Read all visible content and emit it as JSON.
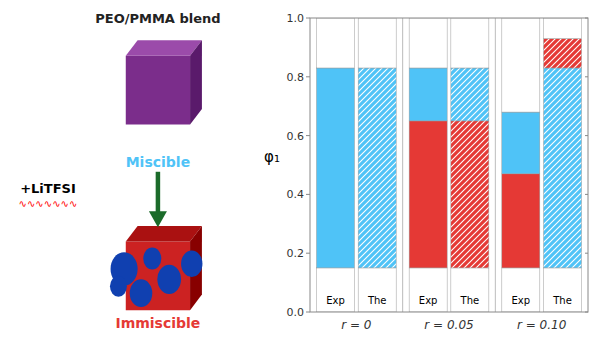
{
  "chart_data": {
    "type": "bar",
    "stacked": true,
    "title": "PEO/PMMA blend",
    "ylabel": "φ₁",
    "categories": [
      "r = 0",
      "r = 0.05",
      "r = 0.10"
    ],
    "ylim": [
      0.0,
      1.0
    ],
    "yticks": [
      {
        "value": 0.0,
        "label": "0.0"
      },
      0.2,
      0.4,
      0.6,
      0.8,
      {
        "value": 1.0,
        "label": "1.0"
      }
    ],
    "series": [
      {
        "name": "Exp",
        "values": [
          [
            0.15,
            0.68,
            0.17
          ],
          [
            0.15,
            0.5,
            0.18,
            0.17
          ],
          [
            0.15,
            0.32,
            0.21,
            0.32
          ]
        ],
        "colors": [
          [
            "#FFFFFF",
            "#4FC3F7",
            "#FFFFFF"
          ],
          [
            "#FFFFFF",
            "#E53935",
            "#4FC3F7",
            "#FFFFFF"
          ],
          [
            "#FFFFFF",
            "#E53935",
            "#4FC3F7",
            "#FFFFFF"
          ]
        ]
      },
      {
        "name": "The",
        "values": [
          [
            0.15,
            0.68,
            0.17
          ],
          [
            0.15,
            0.5,
            0.18,
            0.17
          ],
          [
            0.15,
            0.68,
            0.1,
            0.07
          ]
        ],
        "colors": [
          [
            "#FFFFFF",
            "#4FC3F7",
            "#FFFFFF"
          ],
          [
            "#FFFFFF",
            "#E53935",
            "#4FC3F7",
            "#FFFFFF"
          ],
          [
            "#FFFFFF",
            "#4FC3F7",
            "#E53935",
            "#FFFFFF"
          ]
        ]
      }
    ],
    "annotations": [
      {
        "text": "Miscible",
        "color": "#4FC3F7"
      },
      {
        "text": "+LiTFSI",
        "color": "black"
      },
      {
        "text": "∿∿∿∿∿∿∿",
        "color": "red"
      },
      {
        "text": "Immiscible",
        "color": "#E53935"
      }
    ]
  }
}
